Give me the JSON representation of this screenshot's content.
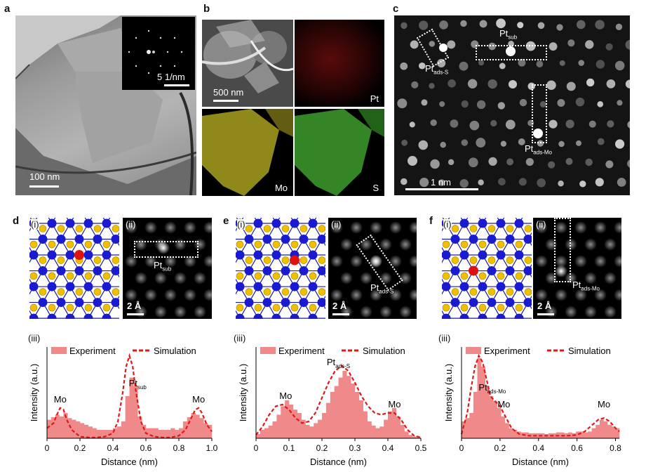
{
  "panels": {
    "a": {
      "letter": "a",
      "scale_label": "100 nm",
      "inset_scale_label": "5 1/nm"
    },
    "b": {
      "letter": "b",
      "scale_label": "500 nm",
      "labels": {
        "pt": "Pt",
        "mo": "Mo",
        "s": "S"
      }
    },
    "c": {
      "letter": "c",
      "scale_label": "1 nm",
      "pt_sub_base": "Pt",
      "pt_sub_sub": "sub",
      "pt_ads_s_base": "Pt",
      "pt_ads_s_sub": "ads-S",
      "pt_ads_mo_base": "Pt",
      "pt_ads_mo_sub": "ads-Mo"
    },
    "d": {
      "letter": "d",
      "i": "(i)",
      "ii": "(ii)",
      "iii": "(iii)",
      "scale": "2 Å",
      "pt_base": "Pt",
      "pt_sub": "sub"
    },
    "e": {
      "letter": "e",
      "i": "(i)",
      "ii": "(ii)",
      "iii": "(iii)",
      "scale": "2 Å",
      "pt_base": "Pt",
      "pt_sub": "ads-S"
    },
    "f": {
      "letter": "f",
      "i": "(i)",
      "ii": "(ii)",
      "iii": "(iii)",
      "scale": "2 Å",
      "pt_base": "Pt",
      "pt_sub": "ads-Mo"
    }
  },
  "colors": {
    "bar": "#f08a8a",
    "sim": "#e01818",
    "mo_atom": "#1a1ad0",
    "s_atom": "#f0c000",
    "pt_atom": "#e01010"
  },
  "chart_data": [
    {
      "type": "bar",
      "id": "d",
      "title": "",
      "xlabel": "Distance (nm)",
      "ylabel": "Intensity (a.u.)",
      "xlim": [
        0,
        1.0
      ],
      "xticks": [
        0,
        0.2,
        0.4,
        0.6,
        0.8,
        1.0
      ],
      "xtick_labels": [
        "0",
        "0.2",
        "0.4",
        "0.6",
        "0.8",
        "1.0"
      ],
      "legend": [
        "Experiment",
        "Simulation"
      ],
      "annotations": [
        {
          "text": "Mo",
          "x": 0.08
        },
        {
          "text": "Pt",
          "sub": "sub",
          "x": 0.55
        },
        {
          "text": "Mo",
          "x": 0.92
        }
      ],
      "bin_width": 0.025,
      "experiment": [
        0.22,
        0.25,
        0.28,
        0.26,
        0.3,
        0.24,
        0.22,
        0.2,
        0.18,
        0.16,
        0.14,
        0.12,
        0.1,
        0.1,
        0.1,
        0.1,
        0.12,
        0.14,
        0.2,
        0.5,
        0.72,
        0.62,
        0.26,
        0.16,
        0.12,
        0.12,
        0.12,
        0.1,
        0.1,
        0.1,
        0.12,
        0.1,
        0.12,
        0.2,
        0.25,
        0.3,
        0.28,
        0.24,
        0.18,
        0.16
      ],
      "simulation_x": [
        0,
        0.04,
        0.06,
        0.08,
        0.1,
        0.12,
        0.15,
        0.2,
        0.25,
        0.3,
        0.35,
        0.4,
        0.43,
        0.46,
        0.48,
        0.5,
        0.52,
        0.54,
        0.57,
        0.6,
        0.65,
        0.7,
        0.75,
        0.8,
        0.84,
        0.88,
        0.9,
        0.92,
        0.94,
        0.97,
        1.0
      ],
      "simulation_y": [
        0.12,
        0.18,
        0.28,
        0.36,
        0.34,
        0.22,
        0.1,
        0.02,
        0.01,
        0.01,
        0.02,
        0.06,
        0.2,
        0.55,
        0.85,
        0.98,
        0.85,
        0.55,
        0.2,
        0.06,
        0.02,
        0.01,
        0.01,
        0.03,
        0.1,
        0.26,
        0.34,
        0.36,
        0.3,
        0.16,
        0.08
      ],
      "ymax": 1.0
    },
    {
      "type": "bar",
      "id": "e",
      "title": "",
      "xlabel": "Distance (nm)",
      "ylabel": "Intensity (a.u.)",
      "xlim": [
        0,
        0.5
      ],
      "xticks": [
        0,
        0.1,
        0.2,
        0.3,
        0.4,
        0.5
      ],
      "xtick_labels": [
        "0",
        "0.1",
        "0.2",
        "0.3",
        "0.4",
        "0.5"
      ],
      "legend": [
        "Experiment",
        "Simulation"
      ],
      "annotations": [
        {
          "text": "Mo",
          "x": 0.09
        },
        {
          "text": "Pt",
          "sub": "ads-S",
          "x": 0.25
        },
        {
          "text": "Mo",
          "x": 0.42
        }
      ],
      "bin_width": 0.0125,
      "experiment": [
        0.05,
        0.1,
        0.12,
        0.15,
        0.2,
        0.28,
        0.38,
        0.45,
        0.4,
        0.34,
        0.3,
        0.22,
        0.16,
        0.14,
        0.18,
        0.22,
        0.3,
        0.42,
        0.55,
        0.62,
        0.72,
        0.8,
        0.74,
        0.65,
        0.55,
        0.45,
        0.32,
        0.2,
        0.15,
        0.12,
        0.14,
        0.22,
        0.32,
        0.36,
        0.26,
        0.16,
        0.08,
        0.04,
        0.02,
        0.01
      ],
      "simulation_x": [
        0,
        0.02,
        0.04,
        0.06,
        0.08,
        0.1,
        0.12,
        0.14,
        0.16,
        0.18,
        0.2,
        0.22,
        0.24,
        0.26,
        0.28,
        0.3,
        0.32,
        0.34,
        0.36,
        0.38,
        0.4,
        0.42,
        0.44,
        0.46,
        0.48,
        0.5
      ],
      "simulation_y": [
        0.04,
        0.14,
        0.28,
        0.38,
        0.4,
        0.34,
        0.24,
        0.18,
        0.2,
        0.3,
        0.48,
        0.66,
        0.8,
        0.86,
        0.8,
        0.66,
        0.5,
        0.38,
        0.3,
        0.28,
        0.3,
        0.3,
        0.22,
        0.1,
        0.03,
        0.01
      ],
      "ymax": 1.0
    },
    {
      "type": "bar",
      "id": "f",
      "title": "",
      "xlabel": "Distance (nm)",
      "ylabel": "Intensity (a.u.)",
      "xlim": [
        0,
        0.82
      ],
      "xticks": [
        0,
        0.2,
        0.4,
        0.6,
        0.8
      ],
      "xtick_labels": [
        "0",
        "0.2",
        "0.4",
        "0.6",
        "0.8"
      ],
      "legend": [
        "Experiment",
        "Simulation"
      ],
      "annotations": [
        {
          "text": "Pt",
          "sub": "ads-Mo",
          "x": 0.16
        },
        {
          "text": "Mo",
          "x": 0.22
        },
        {
          "text": "Mo",
          "x": 0.74
        }
      ],
      "bin_width": 0.0205,
      "experiment": [
        0.2,
        0.24,
        0.3,
        0.55,
        0.95,
        0.85,
        0.62,
        0.5,
        0.44,
        0.36,
        0.26,
        0.18,
        0.12,
        0.1,
        0.08,
        0.07,
        0.07,
        0.06,
        0.06,
        0.06,
        0.06,
        0.05,
        0.06,
        0.06,
        0.07,
        0.07,
        0.06,
        0.07,
        0.06,
        0.08,
        0.08,
        0.07,
        0.08,
        0.12,
        0.16,
        0.22,
        0.2,
        0.16,
        0.14,
        0.12
      ],
      "simulation_x": [
        0,
        0.03,
        0.05,
        0.07,
        0.09,
        0.11,
        0.13,
        0.15,
        0.17,
        0.2,
        0.23,
        0.26,
        0.3,
        0.35,
        0.4,
        0.45,
        0.5,
        0.55,
        0.6,
        0.64,
        0.68,
        0.71,
        0.74,
        0.77,
        0.8,
        0.82
      ],
      "simulation_y": [
        0.05,
        0.3,
        0.6,
        0.85,
        0.98,
        0.9,
        0.7,
        0.5,
        0.45,
        0.38,
        0.25,
        0.12,
        0.05,
        0.03,
        0.03,
        0.03,
        0.03,
        0.03,
        0.04,
        0.08,
        0.16,
        0.22,
        0.24,
        0.2,
        0.12,
        0.08
      ],
      "ymax": 1.0
    }
  ]
}
